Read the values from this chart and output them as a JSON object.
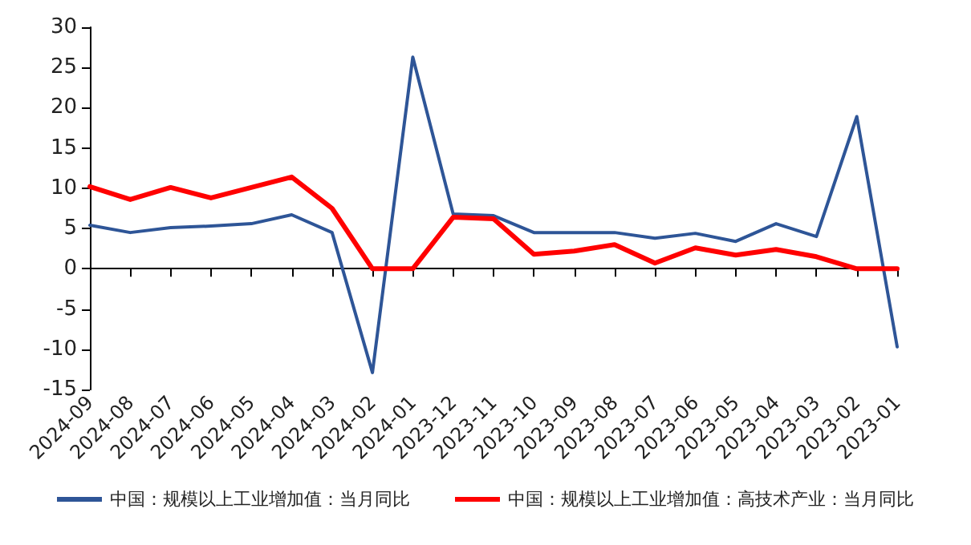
{
  "chart_data": {
    "type": "line",
    "categories": [
      "2024-09",
      "2024-08",
      "2024-07",
      "2024-06",
      "2024-05",
      "2024-04",
      "2024-03",
      "2024-02",
      "2024-01",
      "2023-12",
      "2023-11",
      "2023-10",
      "2023-09",
      "2023-08",
      "2023-07",
      "2023-06",
      "2023-05",
      "2023-04",
      "2023-03",
      "2023-02",
      "2023-01"
    ],
    "series": [
      {
        "name": "中国：规模以上工业增加值：当月同比",
        "color": "#2e5597",
        "values": [
          5.4,
          4.5,
          5.1,
          5.3,
          5.6,
          6.7,
          4.5,
          -12.9,
          26.3,
          6.8,
          6.6,
          4.5,
          4.5,
          4.5,
          3.8,
          4.4,
          3.4,
          5.6,
          4.0,
          18.9,
          -9.7
        ]
      },
      {
        "name": "中国：规模以上工业增加值：高技术产业：当月同比",
        "color": "#ff0000",
        "values": [
          10.2,
          8.6,
          10.1,
          8.8,
          10.1,
          11.4,
          7.5,
          0,
          0,
          6.4,
          6.2,
          1.8,
          2.2,
          3.0,
          0.7,
          2.6,
          1.7,
          2.4,
          1.5,
          0,
          0
        ]
      }
    ],
    "ylim": [
      -15,
      30
    ],
    "yticks": [
      -15,
      -10,
      -5,
      0,
      5,
      10,
      15,
      20,
      25,
      30
    ],
    "legend": "bottom",
    "marker": "none",
    "line_style": "solid"
  }
}
